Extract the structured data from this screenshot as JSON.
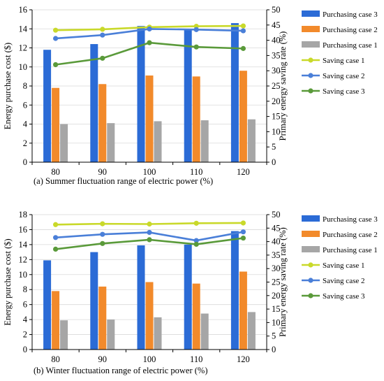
{
  "colors": {
    "purchasing_case_3": "#2b6bd6",
    "purchasing_case_2": "#f28a2b",
    "purchasing_case_1": "#a6a6a6",
    "saving_case_1": "#c9d92a",
    "saving_case_2": "#4a7fd8",
    "saving_case_3": "#5a9a3a",
    "grid": "#d9d9d9",
    "axis": "#000000"
  },
  "chart_data": [
    {
      "type": "bar",
      "caption": "(a) Summer fluctuation range of electric power (%)",
      "categories": [
        "80",
        "90",
        "100",
        "110",
        "120"
      ],
      "ylabel": "Energy purchase cost ($)",
      "y2label": "Primary energy saving rate (%)",
      "ylim": [
        0,
        16
      ],
      "yticks": [
        0,
        2,
        4,
        6,
        8,
        10,
        12,
        14,
        16
      ],
      "y2lim": [
        0,
        50
      ],
      "y2ticks": [
        0,
        5,
        10,
        15,
        20,
        25,
        30,
        35,
        40,
        45,
        50
      ],
      "grid": true,
      "legend": "right",
      "series": [
        {
          "name": "Purchasing case 3",
          "kind": "bar",
          "axis": "left",
          "color_key": "purchasing_case_3",
          "values": [
            11.8,
            12.4,
            14.3,
            14.0,
            14.6
          ]
        },
        {
          "name": "Purchasing case 2",
          "kind": "bar",
          "axis": "left",
          "color_key": "purchasing_case_2",
          "values": [
            7.8,
            8.2,
            9.1,
            9.0,
            9.6
          ]
        },
        {
          "name": "Purchasing case 1",
          "kind": "bar",
          "axis": "left",
          "color_key": "purchasing_case_1",
          "values": [
            4.0,
            4.1,
            4.3,
            4.4,
            4.5
          ]
        },
        {
          "name": "Saving case 1",
          "kind": "line",
          "axis": "right",
          "color_key": "saving_case_1",
          "values": [
            43.3,
            43.6,
            44.3,
            44.6,
            44.7
          ]
        },
        {
          "name": "Saving case 2",
          "kind": "line",
          "axis": "right",
          "color_key": "saving_case_2",
          "values": [
            40.6,
            41.7,
            43.7,
            43.5,
            43.1
          ]
        },
        {
          "name": "Saving case 3",
          "kind": "line",
          "axis": "right",
          "color_key": "saving_case_3",
          "values": [
            32.0,
            34.1,
            39.2,
            37.8,
            37.3
          ]
        }
      ]
    },
    {
      "type": "bar",
      "caption": "(b) Winter fluctuation range of electric power (%)",
      "categories": [
        "80",
        "90",
        "100",
        "110",
        "120"
      ],
      "ylabel": "Energy purchase cost ($)",
      "y2label": "Primary energy saving rate (%)",
      "ylim": [
        0,
        18
      ],
      "yticks": [
        0,
        2,
        4,
        6,
        8,
        10,
        12,
        14,
        16,
        18
      ],
      "y2lim": [
        0,
        50
      ],
      "y2ticks": [
        0,
        5,
        10,
        15,
        20,
        25,
        30,
        35,
        40,
        45,
        50
      ],
      "grid": true,
      "legend": "right",
      "series": [
        {
          "name": "Purchasing case 3",
          "kind": "bar",
          "axis": "left",
          "color_key": "purchasing_case_3",
          "values": [
            11.9,
            13.0,
            13.9,
            14.0,
            15.8
          ]
        },
        {
          "name": "Purchasing case 2",
          "kind": "bar",
          "axis": "left",
          "color_key": "purchasing_case_2",
          "values": [
            7.8,
            8.4,
            9.0,
            8.8,
            10.4
          ]
        },
        {
          "name": "Purchasing case 1",
          "kind": "bar",
          "axis": "left",
          "color_key": "purchasing_case_1",
          "values": [
            3.9,
            4.0,
            4.3,
            4.8,
            5.0
          ]
        },
        {
          "name": "Saving case 1",
          "kind": "line",
          "axis": "right",
          "color_key": "saving_case_1",
          "values": [
            46.3,
            46.6,
            46.5,
            46.8,
            46.9
          ]
        },
        {
          "name": "Saving case 2",
          "kind": "line",
          "axis": "right",
          "color_key": "saving_case_2",
          "values": [
            41.5,
            42.7,
            43.4,
            40.4,
            43.6
          ]
        },
        {
          "name": "Saving case 3",
          "kind": "line",
          "axis": "right",
          "color_key": "saving_case_3",
          "values": [
            37.2,
            39.3,
            40.7,
            39.0,
            41.3
          ]
        }
      ]
    }
  ]
}
